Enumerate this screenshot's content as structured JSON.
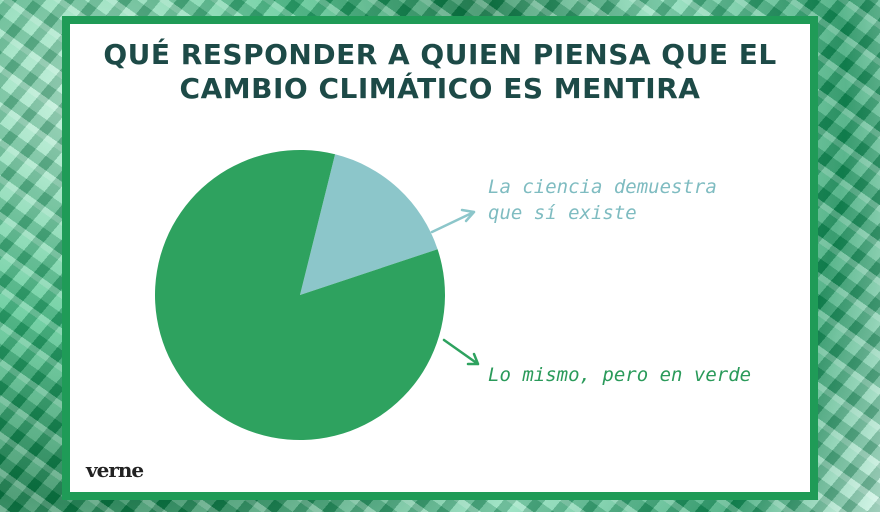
{
  "chart_data": {
    "type": "pie",
    "title": "QUÉ RESPONDER A QUIEN PIENSA QUE EL CAMBIO CLIMÁTICO ES MENTIRA",
    "categories": [
      "La ciencia demuestra que sí existe",
      "Lo mismo, pero en verde"
    ],
    "values": [
      16,
      84
    ],
    "colors": [
      "#8cc6ca",
      "#2ea25f"
    ],
    "brand": "verne"
  }
}
